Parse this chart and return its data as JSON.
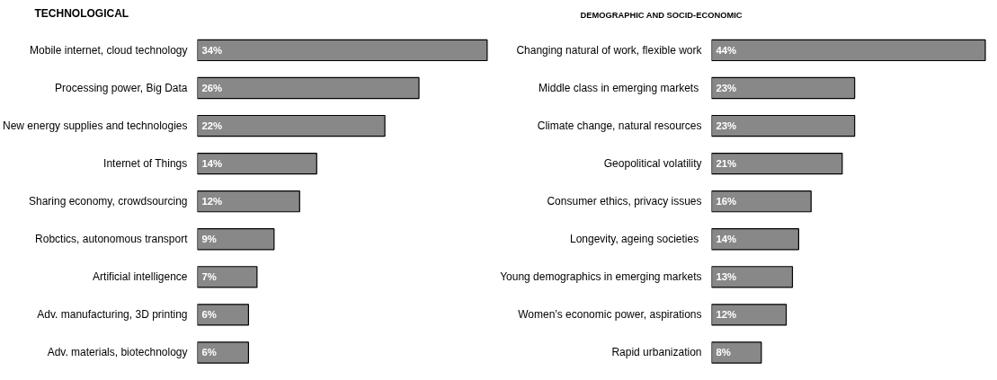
{
  "chart_data": [
    {
      "type": "bar",
      "orientation": "horizontal",
      "title": "TECHNOLOGICAL",
      "tick_labels": "y",
      "grid": false,
      "categories": [
        "Mobile internet, cloud technology",
        "Processing power, Big Data",
        "New energy supplies and technologies",
        "Internet of Things",
        "Sharing economy, crowdsourcing",
        "Robctics, autonomous transport",
        "Artificial intelligence",
        "Adv. manufacturing, 3D printing",
        "Adv. materials, biotechnology"
      ],
      "values": [
        34,
        26,
        22,
        14,
        12,
        9,
        7,
        6,
        6
      ],
      "value_labels": [
        "34%",
        "26%",
        "22%",
        "14%",
        "12%",
        "9%",
        "7%",
        "6%",
        "6%"
      ],
      "color": "#888888"
    },
    {
      "type": "bar",
      "orientation": "horizontal",
      "title": "DEMOGRAPHIC AND SOCID-ECONOMIC",
      "tick_labels": "y",
      "grid": false,
      "categories": [
        "Changing natural of work, flexible work",
        "Middle class in emerging  markets",
        "Climate change, natural resources",
        "Geopolitical volatility",
        "Consumer ethics, privacy issues",
        "Longevity,  ageing societies",
        "Young demographics in emerging markets",
        "Women’s economic power, aspirations",
        "Rapid urbanization"
      ],
      "values": [
        44,
        23,
        23,
        21,
        16,
        14,
        13,
        12,
        8
      ],
      "value_labels": [
        "44%",
        "23%",
        "23%",
        "21%",
        "16%",
        "14%",
        "13%",
        "12%",
        "8%"
      ],
      "color": "#888888"
    }
  ]
}
